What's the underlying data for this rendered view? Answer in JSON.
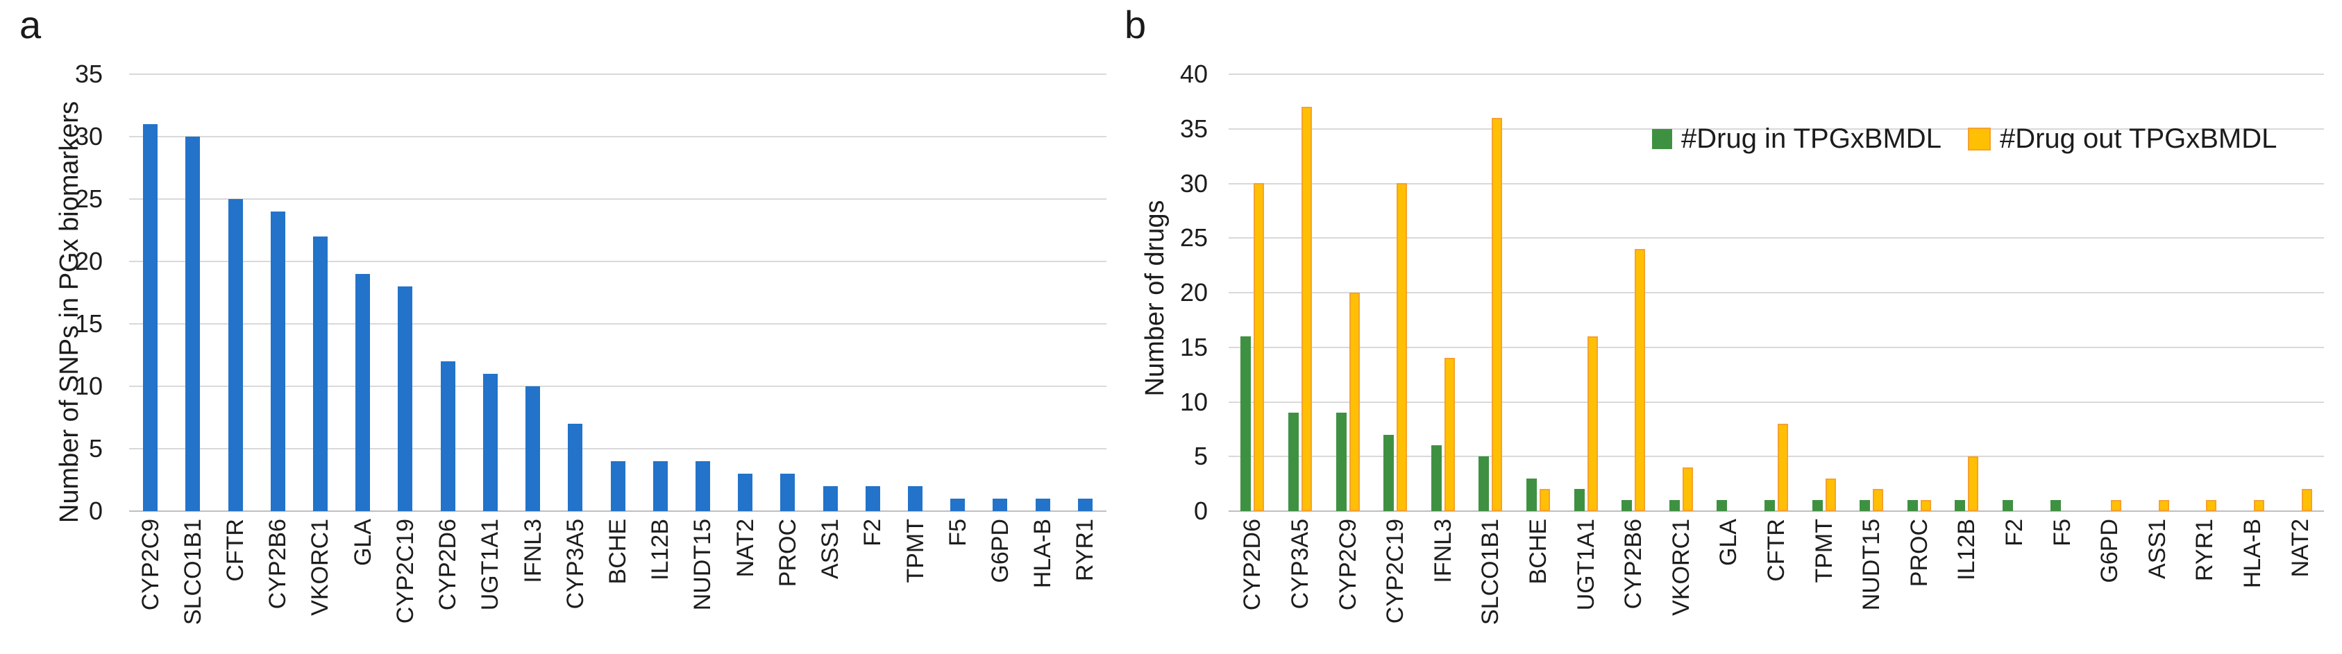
{
  "figure": {
    "background": "#ffffff",
    "text_color": "#1c1c1c",
    "gridline_color": "#d9d9d9",
    "axis_line_color": "#bfbfbf"
  },
  "chart_data": [
    {
      "id": "a",
      "panel_label": "a",
      "type": "bar",
      "title": "",
      "xlabel": "",
      "ylabel": "Number of SNPs in PGx biomarkers",
      "ylim": [
        0,
        35
      ],
      "ytick_step": 5,
      "ytick_labels": [
        "0",
        "5",
        "10",
        "15",
        "20",
        "25",
        "30",
        "35"
      ],
      "grid": true,
      "bar_color": "#2273c9",
      "categories": [
        "CYP2C9",
        "SLCO1B1",
        "CFTR",
        "CYP2B6",
        "VKORC1",
        "GLA",
        "CYP2C19",
        "CYP2D6",
        "UGT1A1",
        "IFNL3",
        "CYP3A5",
        "BCHE",
        "IL12B",
        "NUDT15",
        "NAT2",
        "PROC",
        "ASS1",
        "F2",
        "TPMT",
        "F5",
        "G6PD",
        "HLA-B",
        "RYR1"
      ],
      "values": [
        31,
        30,
        25,
        24,
        22,
        19,
        18,
        12,
        11,
        10,
        7,
        4,
        4,
        4,
        3,
        3,
        2,
        2,
        2,
        1,
        1,
        1,
        1
      ]
    },
    {
      "id": "b",
      "panel_label": "b",
      "type": "bar",
      "title": "",
      "xlabel": "",
      "ylabel": "Number of drugs",
      "ylim": [
        0,
        40
      ],
      "ytick_step": 5,
      "ytick_labels": [
        "0",
        "5",
        "10",
        "15",
        "20",
        "25",
        "30",
        "35",
        "40"
      ],
      "grid": true,
      "legend_position": "top-right-inside",
      "categories": [
        "CYP2D6",
        "CYP3A5",
        "CYP2C9",
        "CYP2C19",
        "IFNL3",
        "SLCO1B1",
        "BCHE",
        "UGT1A1",
        "CYP2B6",
        "VKORC1",
        "GLA",
        "CFTR",
        "TPMT",
        "NUDT15",
        "PROC",
        "IL12B",
        "F2",
        "F5",
        "G6PD",
        "ASS1",
        "RYR1",
        "HLA-B",
        "NAT2"
      ],
      "series": [
        {
          "name": "#Drug in TPGxBMDL",
          "color": "#3f9142",
          "border_color": "#3f9142",
          "values": [
            16,
            9,
            9,
            7,
            6,
            5,
            3,
            2,
            1,
            1,
            1,
            1,
            1,
            1,
            1,
            1,
            1,
            1,
            0,
            0,
            0,
            0,
            0
          ]
        },
        {
          "name": "#Drug out TPGxBMDL",
          "color": "#ffc004",
          "border_color": "#f7a12c",
          "values": [
            30,
            37,
            20,
            30,
            14,
            36,
            2,
            16,
            24,
            4,
            0,
            8,
            3,
            2,
            1,
            5,
            0,
            0,
            1,
            1,
            1,
            1,
            2
          ]
        }
      ]
    }
  ]
}
